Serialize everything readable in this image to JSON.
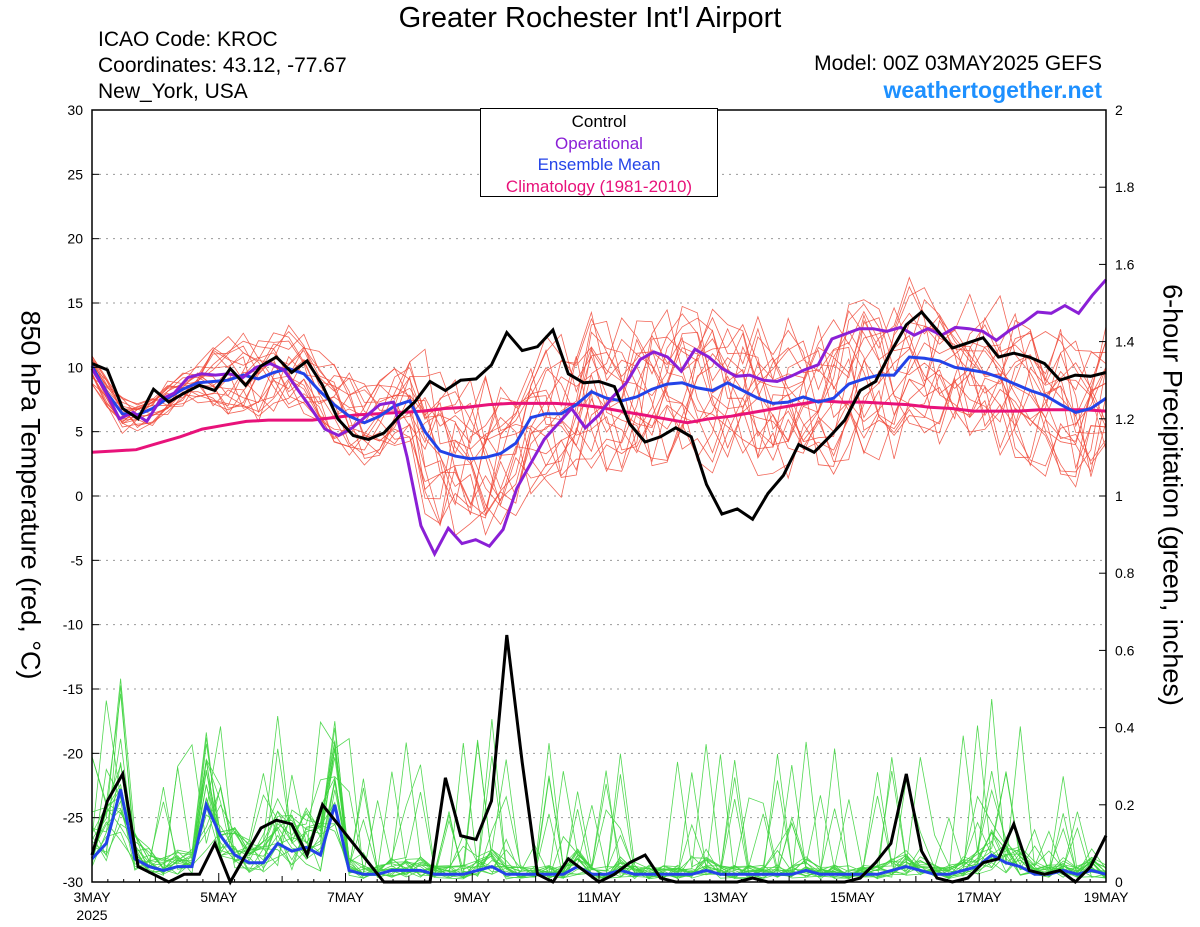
{
  "header": {
    "title": "Greater Rochester Int'l Airport",
    "icao": "ICAO Code: KROC",
    "coordinates": "Coordinates: 43.12, -77.67",
    "location": "New_York, USA",
    "model": "Model: 00Z 03MAY2025 GEFS",
    "site": "weathertogether.net"
  },
  "colors": {
    "members_temp": "#f04a3a",
    "members_precip": "#3fd43f",
    "control": "#000000",
    "operational": "#8a1fd6",
    "ensemble_mean": "#2343e8",
    "climatology": "#e8127a",
    "site": "#1e90ff"
  },
  "chart_data": {
    "type": "line",
    "title": "Greater Rochester Int'l Airport",
    "x_start": "3MAY2025 00Z",
    "x_step_hours": 6,
    "x_ticks": [
      "3MAY",
      "5MAY",
      "7MAY",
      "9MAY",
      "11MAY",
      "13MAY",
      "15MAY",
      "17MAY",
      "19MAY"
    ],
    "x_year_label": "2025",
    "ylabel": "850 hPa Temperature (red, °C)",
    "ylim": [
      -30,
      30
    ],
    "y_ticks": [
      30,
      25,
      20,
      15,
      10,
      5,
      0,
      -5,
      -10,
      -15,
      -20,
      -25,
      -30
    ],
    "y2label": "6-hour Precipitation (green, inches)",
    "y2lim": [
      0,
      2
    ],
    "y2_ticks": [
      "2",
      "1.8",
      "1.6",
      "1.4",
      "1.2",
      "1",
      "0.8",
      "0.6",
      "0.4",
      "0.2",
      "0"
    ],
    "grid": true,
    "legend": [
      "Control",
      "Operational",
      "Ensemble Mean",
      "Climatology (1981-2010)"
    ],
    "legend_position": "top-center",
    "temperature": {
      "control": [
        10.3,
        9.8,
        6.8,
        6.0,
        8.3,
        7.3,
        8.0,
        8.6,
        8.2,
        9.9,
        8.6,
        10.1,
        10.8,
        9.6,
        10.5,
        8.6,
        6.0,
        4.7,
        4.4,
        4.9,
        6.2,
        7.3,
        8.9,
        8.2,
        9.0,
        9.1,
        10.2,
        12.7,
        11.3,
        11.6,
        12.9,
        9.5,
        8.8,
        8.9,
        8.5,
        5.6,
        4.2,
        4.6,
        5.3,
        4.6,
        0.9,
        -1.4,
        -1.0,
        -1.8,
        0.2,
        1.6,
        4.0,
        3.4,
        4.6,
        5.9,
        8.2,
        8.9,
        11.2,
        13.3,
        14.3,
        12.9,
        11.5,
        11.9,
        12.3,
        10.8,
        11.1,
        10.8,
        10.3,
        9.0,
        9.4,
        9.3,
        9.6
      ],
      "operational": [
        9.9,
        8.1,
        6.0,
        6.5,
        5.8,
        7.5,
        8.0,
        9.2,
        9.5,
        9.4,
        9.5,
        9.2,
        10.0,
        10.3,
        9.8,
        8.3,
        6.8,
        5.2,
        4.7,
        5.3,
        6.2,
        7.1,
        7.3,
        3.0,
        -2.3,
        -4.5,
        -2.5,
        -3.7,
        -3.4,
        -3.9,
        -2.6,
        0.6,
        2.5,
        4.4,
        5.6,
        6.8,
        5.3,
        6.3,
        7.7,
        8.8,
        10.6,
        11.2,
        10.8,
        9.7,
        11.4,
        10.8,
        9.9,
        9.3,
        9.4,
        9.0,
        8.9,
        9.3,
        9.8,
        10.2,
        12.2,
        12.6,
        13.0,
        13.0,
        12.8,
        13.1,
        12.5,
        13.0,
        12.5,
        13.1,
        13.0,
        12.8,
        12.1,
        12.9,
        13.5,
        14.3,
        14.2,
        14.8,
        14.2,
        15.6,
        16.8
      ],
      "ensemble_mean": [
        10.1,
        8.0,
        6.4,
        6.3,
        6.8,
        7.6,
        8.3,
        8.8,
        8.9,
        9.0,
        9.4,
        9.1,
        9.6,
        9.9,
        9.5,
        8.2,
        7.1,
        6.2,
        5.7,
        6.2,
        7.0,
        7.4,
        5.0,
        3.5,
        3.1,
        2.9,
        3.0,
        3.3,
        4.1,
        6.1,
        6.4,
        6.4,
        7.1,
        8.1,
        7.6,
        7.4,
        7.7,
        8.3,
        8.7,
        8.8,
        8.4,
        8.2,
        8.8,
        8.2,
        7.6,
        7.2,
        7.3,
        7.7,
        7.3,
        7.6,
        8.7,
        9.1,
        9.4,
        9.4,
        10.8,
        10.7,
        10.5,
        10.0,
        9.8,
        9.6,
        9.2,
        8.7,
        8.2,
        7.8,
        7.1,
        6.5,
        6.8,
        7.6
      ],
      "climatology": [
        3.4,
        3.5,
        3.6,
        4.1,
        4.6,
        5.2,
        5.5,
        5.8,
        5.9,
        5.9,
        5.9,
        6.1,
        6.3,
        6.4,
        6.5,
        6.6,
        6.8,
        6.9,
        7.1,
        7.2,
        7.2,
        7.2,
        7.1,
        6.9,
        6.6,
        6.3,
        6.0,
        5.7,
        6.0,
        6.2,
        6.5,
        6.8,
        7.1,
        7.4,
        7.3,
        7.3,
        7.2,
        7.1,
        6.9,
        6.8,
        6.6,
        6.6,
        6.6,
        6.7,
        6.7,
        6.7,
        6.6
      ]
    },
    "precipitation": {
      "control": [
        0.07,
        0.21,
        0.28,
        0.04,
        0.02,
        0.0,
        0.02,
        0.02,
        0.1,
        0.0,
        0.07,
        0.14,
        0.16,
        0.15,
        0.07,
        0.2,
        0.15,
        0.1,
        0.05,
        0.0,
        0.0,
        0.0,
        0.0,
        0.27,
        0.12,
        0.11,
        0.21,
        0.64,
        0.31,
        0.02,
        0.0,
        0.06,
        0.03,
        0.0,
        0.02,
        0.05,
        0.07,
        0.01,
        0.0,
        0.0,
        0.0,
        0.0,
        0.0,
        0.01,
        0.0,
        0.0,
        0.0,
        0.0,
        0.0,
        0.0,
        0.01,
        0.05,
        0.1,
        0.28,
        0.08,
        0.01,
        0.0,
        0.01,
        0.05,
        0.06,
        0.15,
        0.03,
        0.02,
        0.03,
        0.0,
        0.04,
        0.12
      ],
      "ensemble_mean": [
        0.06,
        0.1,
        0.24,
        0.06,
        0.04,
        0.03,
        0.04,
        0.04,
        0.2,
        0.12,
        0.07,
        0.05,
        0.05,
        0.1,
        0.08,
        0.09,
        0.07,
        0.2,
        0.03,
        0.02,
        0.02,
        0.03,
        0.03,
        0.03,
        0.02,
        0.02,
        0.02,
        0.03,
        0.04,
        0.02,
        0.02,
        0.02,
        0.02,
        0.02,
        0.04,
        0.02,
        0.02,
        0.03,
        0.02,
        0.02,
        0.02,
        0.02,
        0.02,
        0.03,
        0.02,
        0.02,
        0.02,
        0.02,
        0.02,
        0.02,
        0.03,
        0.02,
        0.02,
        0.02,
        0.02,
        0.02,
        0.03,
        0.04,
        0.03,
        0.02,
        0.02,
        0.03,
        0.04,
        0.07,
        0.05,
        0.04,
        0.02,
        0.02,
        0.03,
        0.02,
        0.03,
        0.02
      ]
    }
  }
}
